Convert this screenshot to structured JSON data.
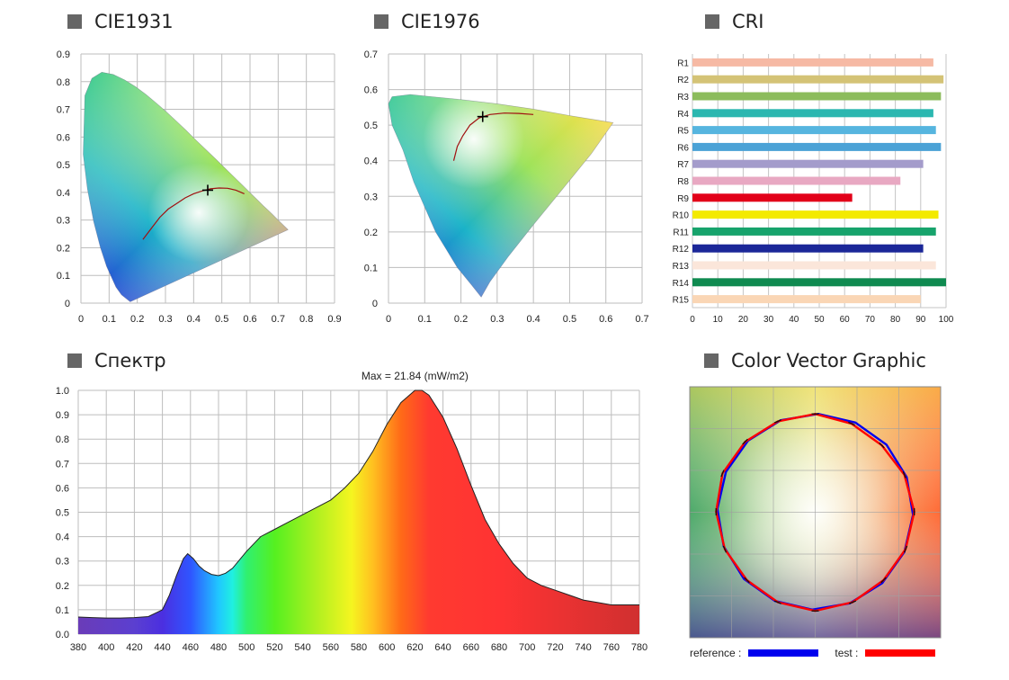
{
  "sections": {
    "cie1931": "CIE1931",
    "cie1976": "CIE1976",
    "cri": "CRI",
    "spectrum": "Спектр",
    "vector": "Color Vector Graphic"
  },
  "legend": {
    "reference_label": "reference :",
    "test_label": "test :",
    "reference_color": "#0000ee",
    "test_color": "#ff0000"
  },
  "chart_data": [
    {
      "id": "cie1931",
      "type": "scatter",
      "title": "CIE1931",
      "xlim": [
        0,
        0.9
      ],
      "ylim": [
        0,
        0.9
      ],
      "xticks": [
        "0",
        "0.1",
        "0.2",
        "0.3",
        "0.4",
        "0.5",
        "0.6",
        "0.7",
        "0.8",
        "0.9"
      ],
      "yticks": [
        "0",
        "0.1",
        "0.2",
        "0.3",
        "0.4",
        "0.5",
        "0.6",
        "0.7",
        "0.8",
        "0.9"
      ],
      "gamut": [
        [
          0.175,
          0.005
        ],
        [
          0.144,
          0.03
        ],
        [
          0.124,
          0.058
        ],
        [
          0.091,
          0.133
        ],
        [
          0.069,
          0.201
        ],
        [
          0.045,
          0.295
        ],
        [
          0.023,
          0.413
        ],
        [
          0.008,
          0.538
        ],
        [
          0.014,
          0.75
        ],
        [
          0.039,
          0.812
        ],
        [
          0.074,
          0.834
        ],
        [
          0.115,
          0.826
        ],
        [
          0.155,
          0.806
        ],
        [
          0.193,
          0.782
        ],
        [
          0.23,
          0.754
        ],
        [
          0.266,
          0.724
        ],
        [
          0.302,
          0.692
        ],
        [
          0.337,
          0.659
        ],
        [
          0.373,
          0.624
        ],
        [
          0.408,
          0.589
        ],
        [
          0.444,
          0.554
        ],
        [
          0.479,
          0.52
        ],
        [
          0.512,
          0.487
        ],
        [
          0.545,
          0.454
        ],
        [
          0.575,
          0.424
        ],
        [
          0.603,
          0.396
        ],
        [
          0.627,
          0.372
        ],
        [
          0.648,
          0.351
        ],
        [
          0.666,
          0.334
        ],
        [
          0.68,
          0.32
        ],
        [
          0.692,
          0.308
        ],
        [
          0.7,
          0.3
        ],
        [
          0.735,
          0.265
        ]
      ],
      "planckian": [
        [
          0.22,
          0.23
        ],
        [
          0.25,
          0.27
        ],
        [
          0.28,
          0.31
        ],
        [
          0.31,
          0.34
        ],
        [
          0.34,
          0.36
        ],
        [
          0.37,
          0.38
        ],
        [
          0.4,
          0.395
        ],
        [
          0.43,
          0.405
        ],
        [
          0.46,
          0.413
        ],
        [
          0.49,
          0.416
        ],
        [
          0.52,
          0.415
        ],
        [
          0.55,
          0.408
        ],
        [
          0.58,
          0.395
        ]
      ],
      "point": {
        "x": 0.45,
        "y": 0.408
      }
    },
    {
      "id": "cie1976",
      "type": "scatter",
      "title": "CIE1976",
      "xlim": [
        0,
        0.7
      ],
      "ylim": [
        0,
        0.7
      ],
      "xticks": [
        "0",
        "0.1",
        "0.2",
        "0.3",
        "0.4",
        "0.5",
        "0.6",
        "0.7"
      ],
      "yticks": [
        "0",
        "0.1",
        "0.2",
        "0.3",
        "0.4",
        "0.5",
        "0.6",
        "0.7"
      ],
      "gamut": [
        [
          0.256,
          0.017
        ],
        [
          0.23,
          0.05
        ],
        [
          0.19,
          0.1
        ],
        [
          0.16,
          0.15
        ],
        [
          0.13,
          0.2
        ],
        [
          0.1,
          0.27
        ],
        [
          0.07,
          0.34
        ],
        [
          0.04,
          0.43
        ],
        [
          0.01,
          0.5
        ],
        [
          0.0,
          0.56
        ],
        [
          0.01,
          0.58
        ],
        [
          0.06,
          0.586
        ],
        [
          0.12,
          0.58
        ],
        [
          0.2,
          0.572
        ],
        [
          0.3,
          0.56
        ],
        [
          0.4,
          0.545
        ],
        [
          0.5,
          0.527
        ],
        [
          0.62,
          0.507
        ],
        [
          0.56,
          0.42
        ],
        [
          0.48,
          0.32
        ],
        [
          0.4,
          0.22
        ],
        [
          0.33,
          0.13
        ],
        [
          0.28,
          0.06
        ]
      ],
      "planckian": [
        [
          0.18,
          0.4
        ],
        [
          0.19,
          0.44
        ],
        [
          0.205,
          0.47
        ],
        [
          0.225,
          0.5
        ],
        [
          0.25,
          0.52
        ],
        [
          0.28,
          0.53
        ],
        [
          0.32,
          0.534
        ],
        [
          0.36,
          0.533
        ],
        [
          0.4,
          0.53
        ]
      ],
      "point": {
        "x": 0.26,
        "y": 0.524
      }
    },
    {
      "id": "cri",
      "type": "bar",
      "title": "CRI",
      "categories": [
        "R1",
        "R2",
        "R3",
        "R4",
        "R5",
        "R6",
        "R7",
        "R8",
        "R9",
        "R10",
        "R11",
        "R12",
        "R13",
        "R14",
        "R15"
      ],
      "values": [
        95,
        99,
        98,
        95,
        96,
        98,
        91,
        82,
        63,
        97,
        96,
        91,
        96,
        100,
        90
      ],
      "colors": [
        "#f6b9a4",
        "#d4c376",
        "#8cbc5c",
        "#2bb7b0",
        "#56b5df",
        "#4ba2d6",
        "#a49ccb",
        "#e8a8c2",
        "#e20019",
        "#f3ea00",
        "#17a36c",
        "#1b2798",
        "#fbe6da",
        "#0f8a50",
        "#fad6b5"
      ],
      "xlim": [
        0,
        100
      ],
      "xticks": [
        "0",
        "10",
        "20",
        "30",
        "40",
        "50",
        "60",
        "70",
        "80",
        "90",
        "100"
      ]
    },
    {
      "id": "spectrum",
      "type": "area",
      "title": "Спектр",
      "annotation": "Max = 21.84 (mW/m2)",
      "xlim": [
        380,
        780
      ],
      "ylim": [
        0,
        1.0
      ],
      "xticks": [
        "380",
        "400",
        "420",
        "440",
        "460",
        "480",
        "500",
        "520",
        "540",
        "560",
        "580",
        "600",
        "620",
        "640",
        "660",
        "680",
        "700",
        "720",
        "740",
        "760",
        "780"
      ],
      "yticks": [
        "0.0",
        "0.1",
        "0.2",
        "0.3",
        "0.4",
        "0.5",
        "0.6",
        "0.7",
        "0.8",
        "0.9",
        "1.0"
      ],
      "x": [
        380,
        390,
        400,
        410,
        420,
        430,
        440,
        445,
        450,
        455,
        458,
        462,
        466,
        470,
        475,
        480,
        485,
        490,
        500,
        510,
        520,
        530,
        540,
        550,
        560,
        570,
        580,
        590,
        600,
        610,
        620,
        625,
        630,
        640,
        650,
        660,
        670,
        680,
        690,
        700,
        710,
        720,
        730,
        740,
        750,
        760,
        770,
        780
      ],
      "values": [
        0.07,
        0.068,
        0.066,
        0.066,
        0.068,
        0.072,
        0.1,
        0.16,
        0.24,
        0.31,
        0.33,
        0.31,
        0.28,
        0.26,
        0.245,
        0.24,
        0.25,
        0.27,
        0.34,
        0.4,
        0.43,
        0.46,
        0.49,
        0.52,
        0.55,
        0.6,
        0.66,
        0.75,
        0.86,
        0.95,
        1.0,
        1.0,
        0.98,
        0.89,
        0.76,
        0.61,
        0.47,
        0.37,
        0.29,
        0.23,
        0.2,
        0.18,
        0.16,
        0.14,
        0.13,
        0.12,
        0.12,
        0.12
      ]
    },
    {
      "id": "vector",
      "type": "line",
      "title": "Color Vector Graphic",
      "reference_radius": [
        0.78,
        0.78,
        0.78,
        0.78,
        0.78,
        0.78,
        0.78,
        0.78,
        0.78,
        0.78,
        0.78,
        0.78,
        0.78,
        0.78,
        0.78,
        0.78
      ],
      "test_radius": [
        0.78,
        0.76,
        0.75,
        0.77,
        0.79,
        0.78,
        0.77,
        0.78,
        0.79,
        0.78,
        0.77,
        0.78,
        0.79,
        0.8,
        0.79,
        0.78
      ]
    }
  ]
}
